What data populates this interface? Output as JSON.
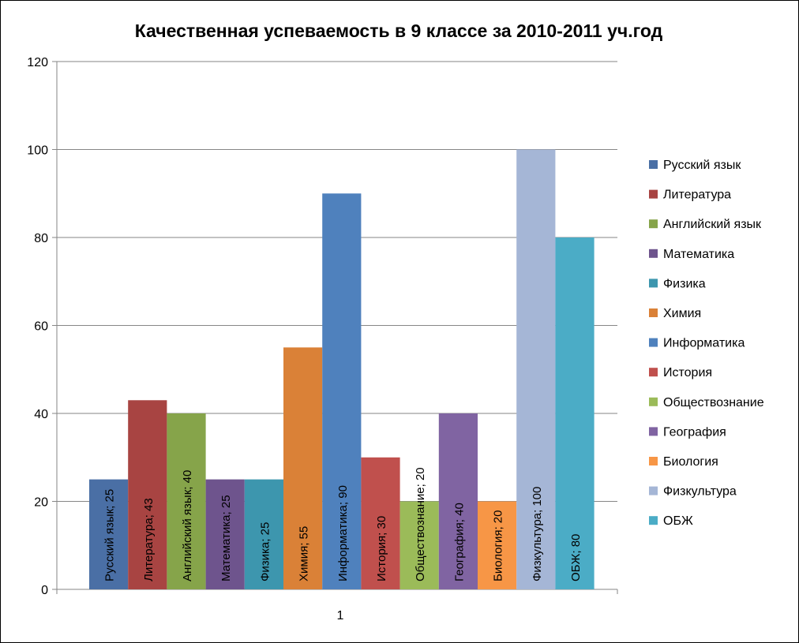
{
  "chart_data": {
    "type": "bar",
    "title": "Качественная успеваемость в 9 классе за 2010-2011 уч.год",
    "xlabel": "",
    "ylabel": "",
    "categories": [
      "1"
    ],
    "ylim": [
      0,
      120
    ],
    "yticks": [
      0,
      20,
      40,
      60,
      80,
      100,
      120
    ],
    "grid": true,
    "legend_position": "right",
    "series": [
      {
        "name": "Русский язык",
        "values": [
          25
        ],
        "color": "#4a6fa5",
        "label": "Русский язык; 25"
      },
      {
        "name": "Литература",
        "values": [
          43
        ],
        "color": "#a84442",
        "label": "Литература; 43"
      },
      {
        "name": "Английский язык",
        "values": [
          40
        ],
        "color": "#86a44a",
        "label": "Английский язык; 40"
      },
      {
        "name": "Математика",
        "values": [
          25
        ],
        "color": "#6e548d",
        "label": "Математика; 25"
      },
      {
        "name": "Физика",
        "values": [
          25
        ],
        "color": "#3d96ae",
        "label": "Физика; 25"
      },
      {
        "name": "Химия",
        "values": [
          55
        ],
        "color": "#da8137",
        "label": "Химия; 55"
      },
      {
        "name": "Информатика",
        "values": [
          90
        ],
        "color": "#4f81bd",
        "label": "Информатика; 90"
      },
      {
        "name": "История",
        "values": [
          30
        ],
        "color": "#c0504d",
        "label": "История; 30"
      },
      {
        "name": "Обществознание",
        "values": [
          20
        ],
        "color": "#9bbb59",
        "label": "Обществознание; 20"
      },
      {
        "name": "География",
        "values": [
          40
        ],
        "color": "#8064a2",
        "label": "География; 40"
      },
      {
        "name": "Биология",
        "values": [
          20
        ],
        "color": "#f79646",
        "label": "Биология; 20"
      },
      {
        "name": "Физкультура",
        "values": [
          100
        ],
        "color": "#a5b6d6",
        "label": "Физкультура; 100"
      },
      {
        "name": "ОБЖ",
        "values": [
          80
        ],
        "color": "#4bacc6",
        "label": "ОБЖ; 80"
      }
    ]
  }
}
